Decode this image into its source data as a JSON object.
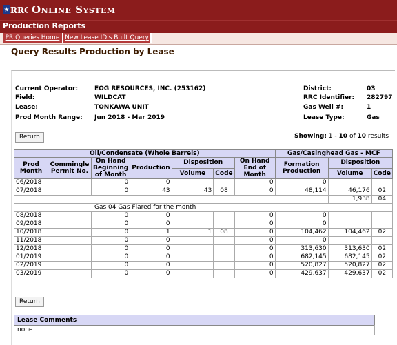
{
  "header": {
    "system_title": "Online System",
    "section_title": "Production Reports"
  },
  "nav": {
    "tabs": [
      "PR Queries Home",
      "New Lease ID's Built Query"
    ]
  },
  "page_title": "Query Results Production by Lease",
  "info": {
    "operator_label": "Current Operator:",
    "operator": "EOG RESOURCES, INC. (253162)",
    "field_label": "Field:",
    "field": "WILDCAT",
    "lease_label": "Lease:",
    "lease": "TONKAWA UNIT",
    "range_label": "Prod Month Range:",
    "range": "Jun 2018 - Mar 2019",
    "district_label": "District:",
    "district": "03",
    "rrc_label": "RRC Identifier:",
    "rrc": "282797",
    "well_label": "Gas Well #:",
    "well": "1",
    "type_label": "Lease Type:",
    "type": "Gas"
  },
  "buttons": {
    "return": "Return"
  },
  "showing": {
    "prefix": "Showing:",
    "from": "1",
    "dash": "-",
    "to": "10",
    "of": "of",
    "total": "10",
    "suffix": "results"
  },
  "table": {
    "group_oil": "Oil/Condensate (Whole Barrels)",
    "group_gas": "Gas/Casinghead Gas - MCF",
    "col_prod_month": "Prod Month",
    "col_commingle": "Commingle Permit No.",
    "col_on_hand_begin": "On Hand Beginning of Month",
    "col_production": "Production",
    "col_disposition": "Disposition",
    "col_volume": "Volume",
    "col_code": "Code",
    "col_on_hand_end": "On Hand End of Month",
    "col_formation": "Formation Production",
    "gas_disposition": "Disposition",
    "gas_volume": "Volume",
    "gas_code": "Code",
    "rows": [
      {
        "month": "06/2018",
        "permit": "",
        "begin": "0",
        "prod": "0",
        "vol": "",
        "code": "",
        "end": "0",
        "form": "0",
        "gvol": "",
        "gcode": ""
      },
      {
        "month": "07/2018",
        "permit": "",
        "begin": "0",
        "prod": "43",
        "vol": "43",
        "code": "08",
        "end": "0",
        "form": "48,114",
        "gvol": "46,176",
        "gcode": "02"
      },
      {
        "extra": true,
        "gvol": "1,938",
        "gcode": "04"
      },
      {
        "note": "Gas 04 Gas Flared for the month"
      },
      {
        "month": "08/2018",
        "permit": "",
        "begin": "0",
        "prod": "0",
        "vol": "",
        "code": "",
        "end": "0",
        "form": "0",
        "gvol": "",
        "gcode": ""
      },
      {
        "month": "09/2018",
        "permit": "",
        "begin": "0",
        "prod": "0",
        "vol": "",
        "code": "",
        "end": "0",
        "form": "0",
        "gvol": "",
        "gcode": ""
      },
      {
        "month": "10/2018",
        "permit": "",
        "begin": "0",
        "prod": "1",
        "vol": "1",
        "code": "08",
        "end": "0",
        "form": "104,462",
        "gvol": "104,462",
        "gcode": "02"
      },
      {
        "month": "11/2018",
        "permit": "",
        "begin": "0",
        "prod": "0",
        "vol": "",
        "code": "",
        "end": "0",
        "form": "0",
        "gvol": "",
        "gcode": ""
      },
      {
        "month": "12/2018",
        "permit": "",
        "begin": "0",
        "prod": "0",
        "vol": "",
        "code": "",
        "end": "0",
        "form": "313,630",
        "gvol": "313,630",
        "gcode": "02"
      },
      {
        "month": "01/2019",
        "permit": "",
        "begin": "0",
        "prod": "0",
        "vol": "",
        "code": "",
        "end": "0",
        "form": "682,145",
        "gvol": "682,145",
        "gcode": "02"
      },
      {
        "month": "02/2019",
        "permit": "",
        "begin": "0",
        "prod": "0",
        "vol": "",
        "code": "",
        "end": "0",
        "form": "520,827",
        "gvol": "520,827",
        "gcode": "02"
      },
      {
        "month": "03/2019",
        "permit": "",
        "begin": "0",
        "prod": "0",
        "vol": "",
        "code": "",
        "end": "0",
        "form": "429,637",
        "gvol": "429,637",
        "gcode": "02"
      }
    ]
  },
  "comments": {
    "header": "Lease Comments",
    "body": "none"
  },
  "colors": {
    "header_bg": "#8b1c1c",
    "tab_bg": "#b33a3a",
    "table_header_bg": "#d7d7f5"
  }
}
